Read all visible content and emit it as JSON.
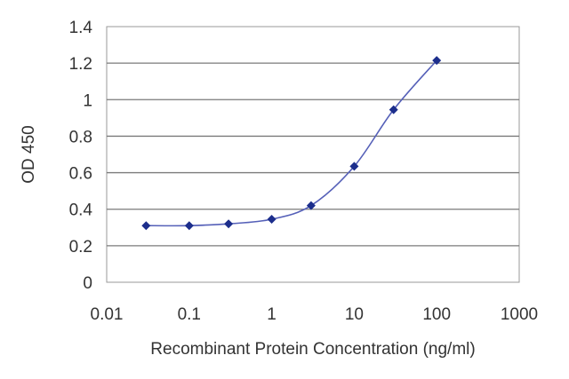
{
  "chart_data": {
    "type": "line",
    "title": "",
    "xlabel": "Recombinant Protein Concentration (ng/ml)",
    "ylabel": "OD 450",
    "x_scale": "log",
    "xlim": [
      0.01,
      1000
    ],
    "ylim": [
      0,
      1.4
    ],
    "x_ticks": [
      "0.01",
      "0.1",
      "1",
      "10",
      "100",
      "1000"
    ],
    "y_ticks": [
      "0",
      "0.2",
      "0.4",
      "0.6",
      "0.8",
      "1",
      "1.2",
      "1.4"
    ],
    "grid": "horizontal",
    "series": [
      {
        "x": [
          0.03,
          0.1,
          0.3,
          1,
          3,
          10,
          30,
          100
        ],
        "y": [
          0.31,
          0.31,
          0.32,
          0.345,
          0.42,
          0.635,
          0.945,
          1.215
        ]
      }
    ],
    "colors": {
      "line": "#5560b8",
      "marker": "#1c2e8c",
      "grid": "#7a7a7a",
      "plot_border": "#9a9a9a"
    }
  }
}
